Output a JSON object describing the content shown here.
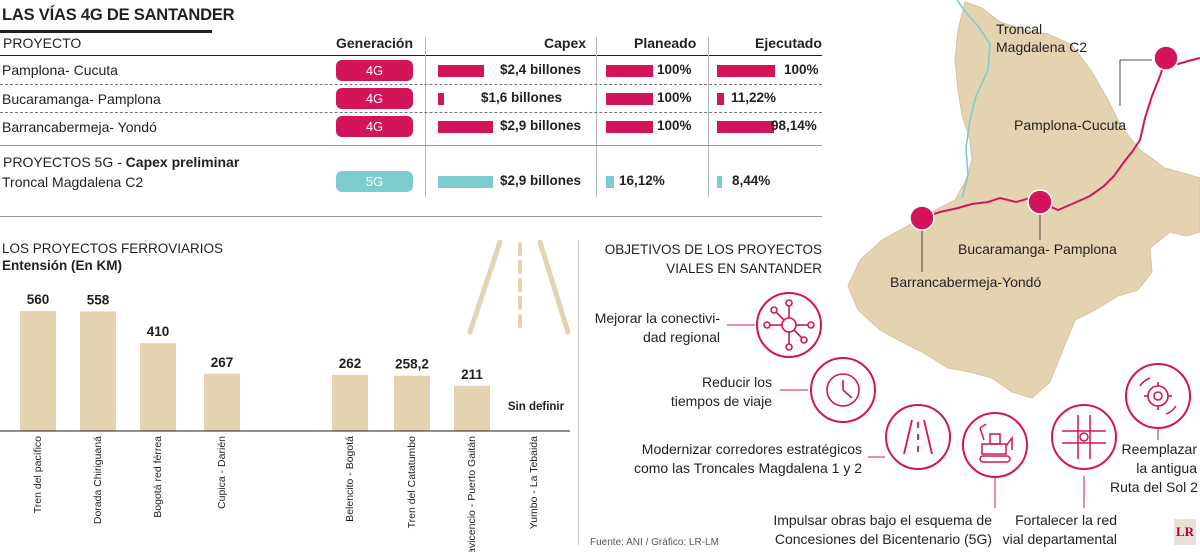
{
  "title": "LAS VÍAS 4G DE SANTANDER",
  "table": {
    "headers": {
      "project": "PROYECTO",
      "generation": "Generación",
      "capex": "Capex",
      "planned": "Planeado",
      "executed": "Ejecutado"
    },
    "rows_4g": [
      {
        "name": "Pamplona- Cucuta",
        "gen": "4G",
        "capex": "$2,4 billones",
        "capex_value": 2.4,
        "planned": "100%",
        "planned_value": 100,
        "executed": "100%",
        "executed_value": 100
      },
      {
        "name": "Bucaramanga- Pamplona",
        "gen": "4G",
        "capex": "$1,6 billones",
        "capex_value": 1.6,
        "planned": "100%",
        "planned_value": 100,
        "executed": "11,22%",
        "executed_value": 11.22
      },
      {
        "name": "Barrancabermeja- Yondó",
        "gen": "4G",
        "capex": "$2,9 billones",
        "capex_value": 2.9,
        "planned": "100%",
        "planned_value": 100,
        "executed": "98,14%",
        "executed_value": 98.14
      }
    ],
    "section_5g": {
      "prefix": "PROYECTOS 5G - ",
      "bold": "Capex preliminar"
    },
    "rows_5g": [
      {
        "name": "Troncal Magdalena C2",
        "gen": "5G",
        "capex": "$2,9 billones",
        "capex_value": 2.9,
        "planned": "16,12%",
        "planned_value": 16.12,
        "executed": "8,44%",
        "executed_value": 8.44
      }
    ]
  },
  "colors": {
    "magenta": "#d4145a",
    "teal": "#7dcdd0",
    "sand": "#e3d3b1",
    "sand_border": "#d8c49f"
  },
  "chart_data": {
    "type": "bar",
    "title": "LOS PROYECTOS FERROVIARIOS",
    "ylabel": "Entensión (En KM)",
    "ylim": [
      0,
      600
    ],
    "categories": [
      "Tren del pacífico",
      "Dorada Chiriguaná",
      "Bogotá red férrea",
      "Cupica - Darién",
      "Belencito - Bogotá",
      "Tren del Catatumbo",
      "Villavicencio - Puerto Gaitán",
      "Yumbo - La Tebaida"
    ],
    "values": [
      560,
      558,
      410,
      267,
      262,
      258.2,
      211,
      null
    ],
    "value_labels": [
      "560",
      "558",
      "410",
      "267",
      "262",
      "258,2",
      "211",
      "Sin definir"
    ]
  },
  "objectives": {
    "title_line1": "OBJETIVOS DE LOS PROYECTOS",
    "title_line2": "VIALES EN SANTANDER",
    "items": [
      {
        "line1": "Mejorar la conectivi-",
        "line2": "dad regional",
        "icon": "network-icon"
      },
      {
        "line1": "Reducir los",
        "line2": "tiempos de viaje",
        "icon": "clock-icon"
      },
      {
        "line1": "Modernizar corredores estratégicos",
        "line2": "como las Troncales Magdalena 1 y 2",
        "icon": "road-icon"
      },
      {
        "line1": "Impulsar obras bajo el esquema de",
        "line2": "Concesiones del Bicentenario (5G)",
        "icon": "excavator-icon"
      },
      {
        "line1": "Fortalecer la red",
        "line2": "vial departamental",
        "icon": "intersection-icon"
      },
      {
        "line1": "Reemplazar",
        "line2": "la antigua",
        "line3": "Ruta del Sol 2",
        "icon": "gear-icon"
      }
    ]
  },
  "map": {
    "labels": {
      "troncal_1": "Troncal",
      "troncal_2": "Magdalena C2",
      "pamplona": "Pamplona-Cucuta",
      "bucaramanga": "Bucaramanga- Pamplona",
      "barranca": "Barrancabermeja-Yondó"
    }
  },
  "source": "Fuente: ANI / Gráfico: LR-LM",
  "logo": "LR"
}
